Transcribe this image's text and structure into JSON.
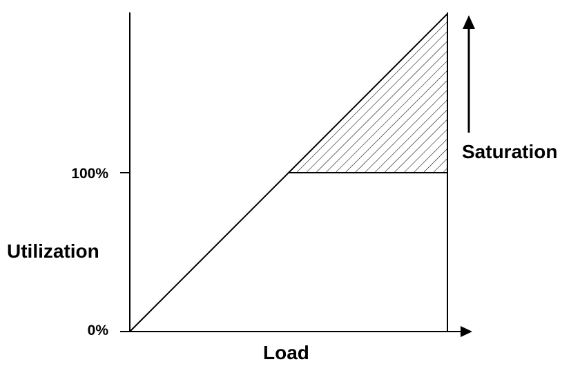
{
  "diagram": {
    "y_axis_label": "Utilization",
    "x_axis_label": "Load",
    "tick_top": "100%",
    "tick_bottom": "0%",
    "saturation_label": "Saturation"
  },
  "colors": {
    "ink": "#000000",
    "background": "#ffffff"
  }
}
